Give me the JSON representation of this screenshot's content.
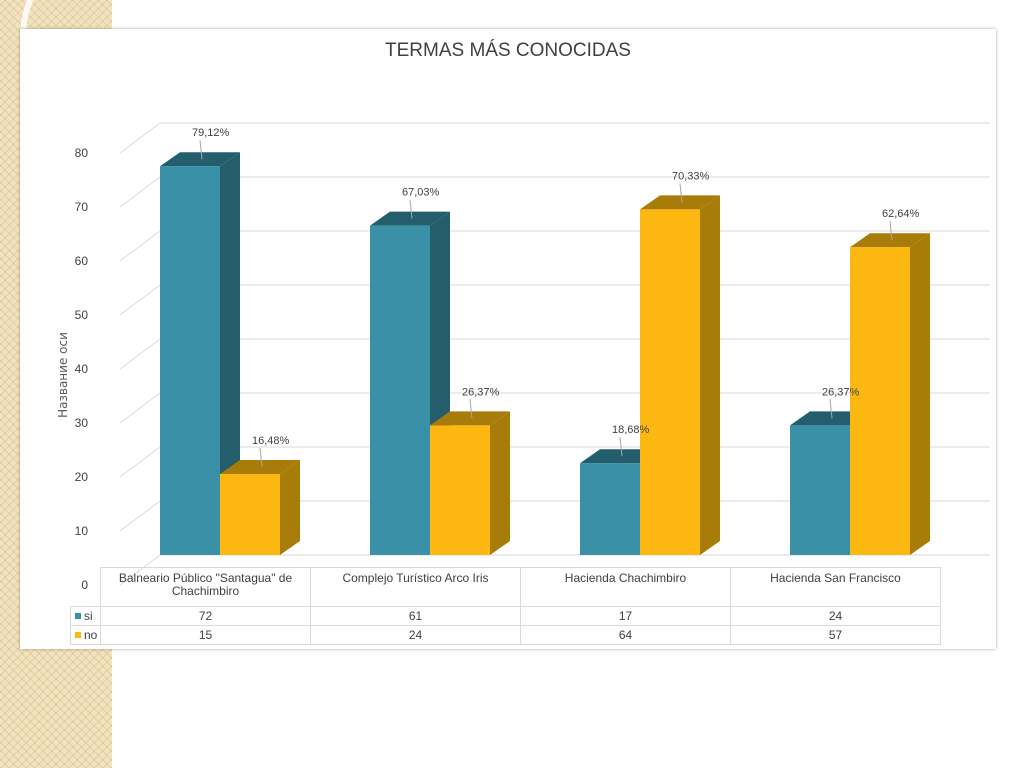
{
  "colors": {
    "si": "#3a91a7",
    "no": "#fcb711",
    "si_side": "#245e6d",
    "no_side": "#a87c09"
  },
  "chart_data": {
    "type": "bar",
    "title": "TERMAS MÁS CONOCIDAS",
    "ylabel": "Название оси",
    "ylim": [
      0,
      80
    ],
    "yticks": [
      0,
      10,
      20,
      30,
      40,
      50,
      60,
      70,
      80
    ],
    "categories": [
      "Balneario Público \"Santagua\" de Chachimbiro",
      "Complejo Turístico Arco Iris",
      "Hacienda Chachimbiro",
      "Hacienda San Francisco"
    ],
    "series": [
      {
        "name": "si",
        "values": [
          72,
          61,
          17,
          24
        ],
        "labels": [
          "79,12%",
          "67,03%",
          "18,68%",
          "26,37%"
        ]
      },
      {
        "name": "no",
        "values": [
          15,
          24,
          64,
          57
        ],
        "labels": [
          "16,48%",
          "26,37%",
          "70,33%",
          "62,64%"
        ]
      }
    ],
    "legend": "data-table",
    "grid": true
  }
}
